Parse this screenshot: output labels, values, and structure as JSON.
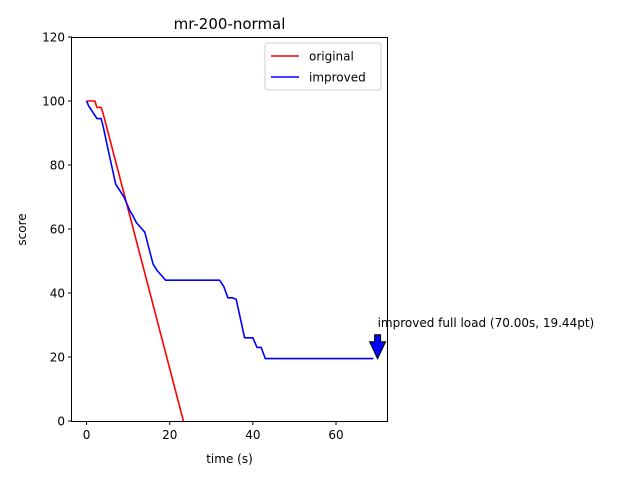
{
  "chart_data": {
    "type": "line",
    "title": "mr-200-normal",
    "xlabel": "time (s)",
    "ylabel": "score",
    "xlim": [
      -3.5,
      72.5
    ],
    "ylim": [
      0,
      120
    ],
    "xticks": [
      0,
      20,
      40,
      60
    ],
    "yticks": [
      0,
      20,
      40,
      60,
      80,
      100,
      120
    ],
    "grid": false,
    "legend_position": "top-right",
    "series": [
      {
        "name": "original",
        "color": "#ff0000",
        "x": [
          0,
          2,
          2.5,
          3,
          3.5,
          4,
          23.3
        ],
        "y": [
          100,
          100,
          98,
          98,
          98,
          96,
          0
        ]
      },
      {
        "name": "improved",
        "color": "#0000ff",
        "x": [
          0,
          0.5,
          1,
          1.5,
          2,
          2.5,
          3,
          3.5,
          4,
          5,
          6,
          7,
          8,
          9,
          10,
          10.5,
          11,
          12,
          13,
          14,
          15,
          16,
          17,
          18,
          19,
          20,
          25,
          30,
          32,
          33,
          34,
          35,
          36,
          37,
          38,
          39,
          40,
          41,
          42,
          43,
          44,
          50,
          60,
          69
        ],
        "y": [
          100,
          98.5,
          97.5,
          96.5,
          95.5,
          94.5,
          94.5,
          94.5,
          92,
          86,
          80,
          74,
          72,
          70,
          67,
          65.5,
          64.5,
          62,
          60.5,
          59,
          54,
          49,
          47,
          45.5,
          44,
          44,
          44,
          44,
          44,
          42,
          38.5,
          38.5,
          38,
          32,
          26,
          26,
          26,
          23,
          23,
          19.5,
          19.5,
          19.5,
          19.5,
          19.5
        ]
      }
    ],
    "annotation": {
      "text": "improved full load (70.00s, 19.44pt)",
      "x": 70,
      "y": 19.44,
      "color": "#0000ff"
    }
  }
}
